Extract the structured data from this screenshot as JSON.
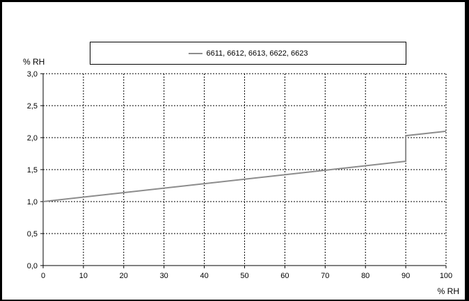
{
  "chart_data": {
    "type": "line",
    "ylabel": "% RH",
    "xlabel": "% RH",
    "xlim": [
      0,
      100
    ],
    "ylim": [
      0,
      3
    ],
    "x_ticks": [
      "0",
      "10",
      "20",
      "30",
      "40",
      "50",
      "60",
      "70",
      "80",
      "90",
      "100"
    ],
    "y_ticks": [
      "0,0",
      "0,5",
      "1,0",
      "1,5",
      "2,0",
      "2,5",
      "3,0"
    ],
    "grid": true,
    "legend_position": "top-center",
    "series": [
      {
        "name": "6611, 6612, 6613, 6622, 6623",
        "color": "#8c8c8c",
        "points": [
          [
            0,
            1.0
          ],
          [
            90,
            1.63
          ],
          [
            90,
            2.03
          ],
          [
            100,
            2.1
          ]
        ]
      }
    ]
  }
}
